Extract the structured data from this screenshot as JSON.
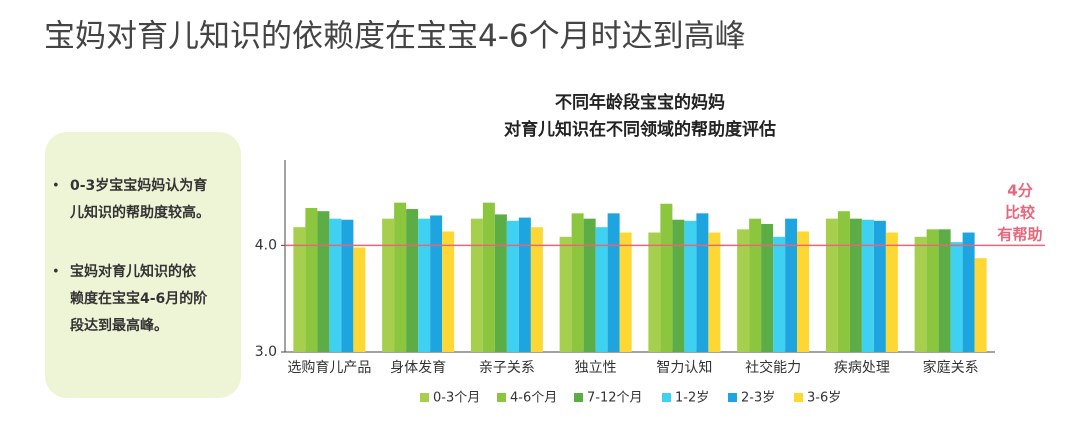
{
  "title": "宝妈对育儿知识的依赖度在宝宝4-6个月时达到高峰",
  "notes": [
    [
      "0-3岁宝宝妈妈认为育",
      "儿知识的帮助度较高。"
    ],
    [
      "宝妈对育儿知识的依",
      "赖度在宝宝4-6月的阶",
      "段达到最高峰。"
    ]
  ],
  "chart_data": {
    "type": "bar",
    "title": [
      "不同年龄段宝宝的妈妈",
      "对育儿知识在不同领域的帮助度评估"
    ],
    "categories": [
      "选购育儿产品",
      "身体发育",
      "亲子关系",
      "独立性",
      "智力认知",
      "社交能力",
      "疾病处理",
      "家庭关系"
    ],
    "series": [
      {
        "name": "0-3个月",
        "color": "#a5cf4c",
        "values": [
          4.17,
          4.25,
          4.25,
          4.08,
          4.12,
          4.15,
          4.25,
          4.08
        ]
      },
      {
        "name": "4-6个月",
        "color": "#8cc63f",
        "values": [
          4.35,
          4.4,
          4.4,
          4.3,
          4.39,
          4.25,
          4.32,
          4.15
        ]
      },
      {
        "name": "7-12个月",
        "color": "#5cad45",
        "values": [
          4.32,
          4.34,
          4.29,
          4.25,
          4.24,
          4.2,
          4.25,
          4.15
        ]
      },
      {
        "name": "1-2岁",
        "color": "#3fd1f2",
        "values": [
          4.25,
          4.25,
          4.23,
          4.17,
          4.23,
          4.08,
          4.24,
          4.03
        ]
      },
      {
        "name": "2-3岁",
        "color": "#1ea5e0",
        "values": [
          4.24,
          4.28,
          4.26,
          4.3,
          4.3,
          4.25,
          4.23,
          4.12
        ]
      },
      {
        "name": "3-6岁",
        "color": "#fdd835",
        "values": [
          3.98,
          4.13,
          4.17,
          4.12,
          4.12,
          4.13,
          4.12,
          3.88
        ]
      }
    ],
    "ylim": [
      3,
      4.8
    ],
    "yticks": [
      {
        "value": 3,
        "label": "3.0"
      },
      {
        "value": 4,
        "label": "4.0"
      }
    ],
    "reference_line": {
      "value": 4,
      "color": "#e8667a",
      "label": [
        "4分",
        "比较",
        "有帮助"
      ]
    },
    "legend": "bottom"
  }
}
